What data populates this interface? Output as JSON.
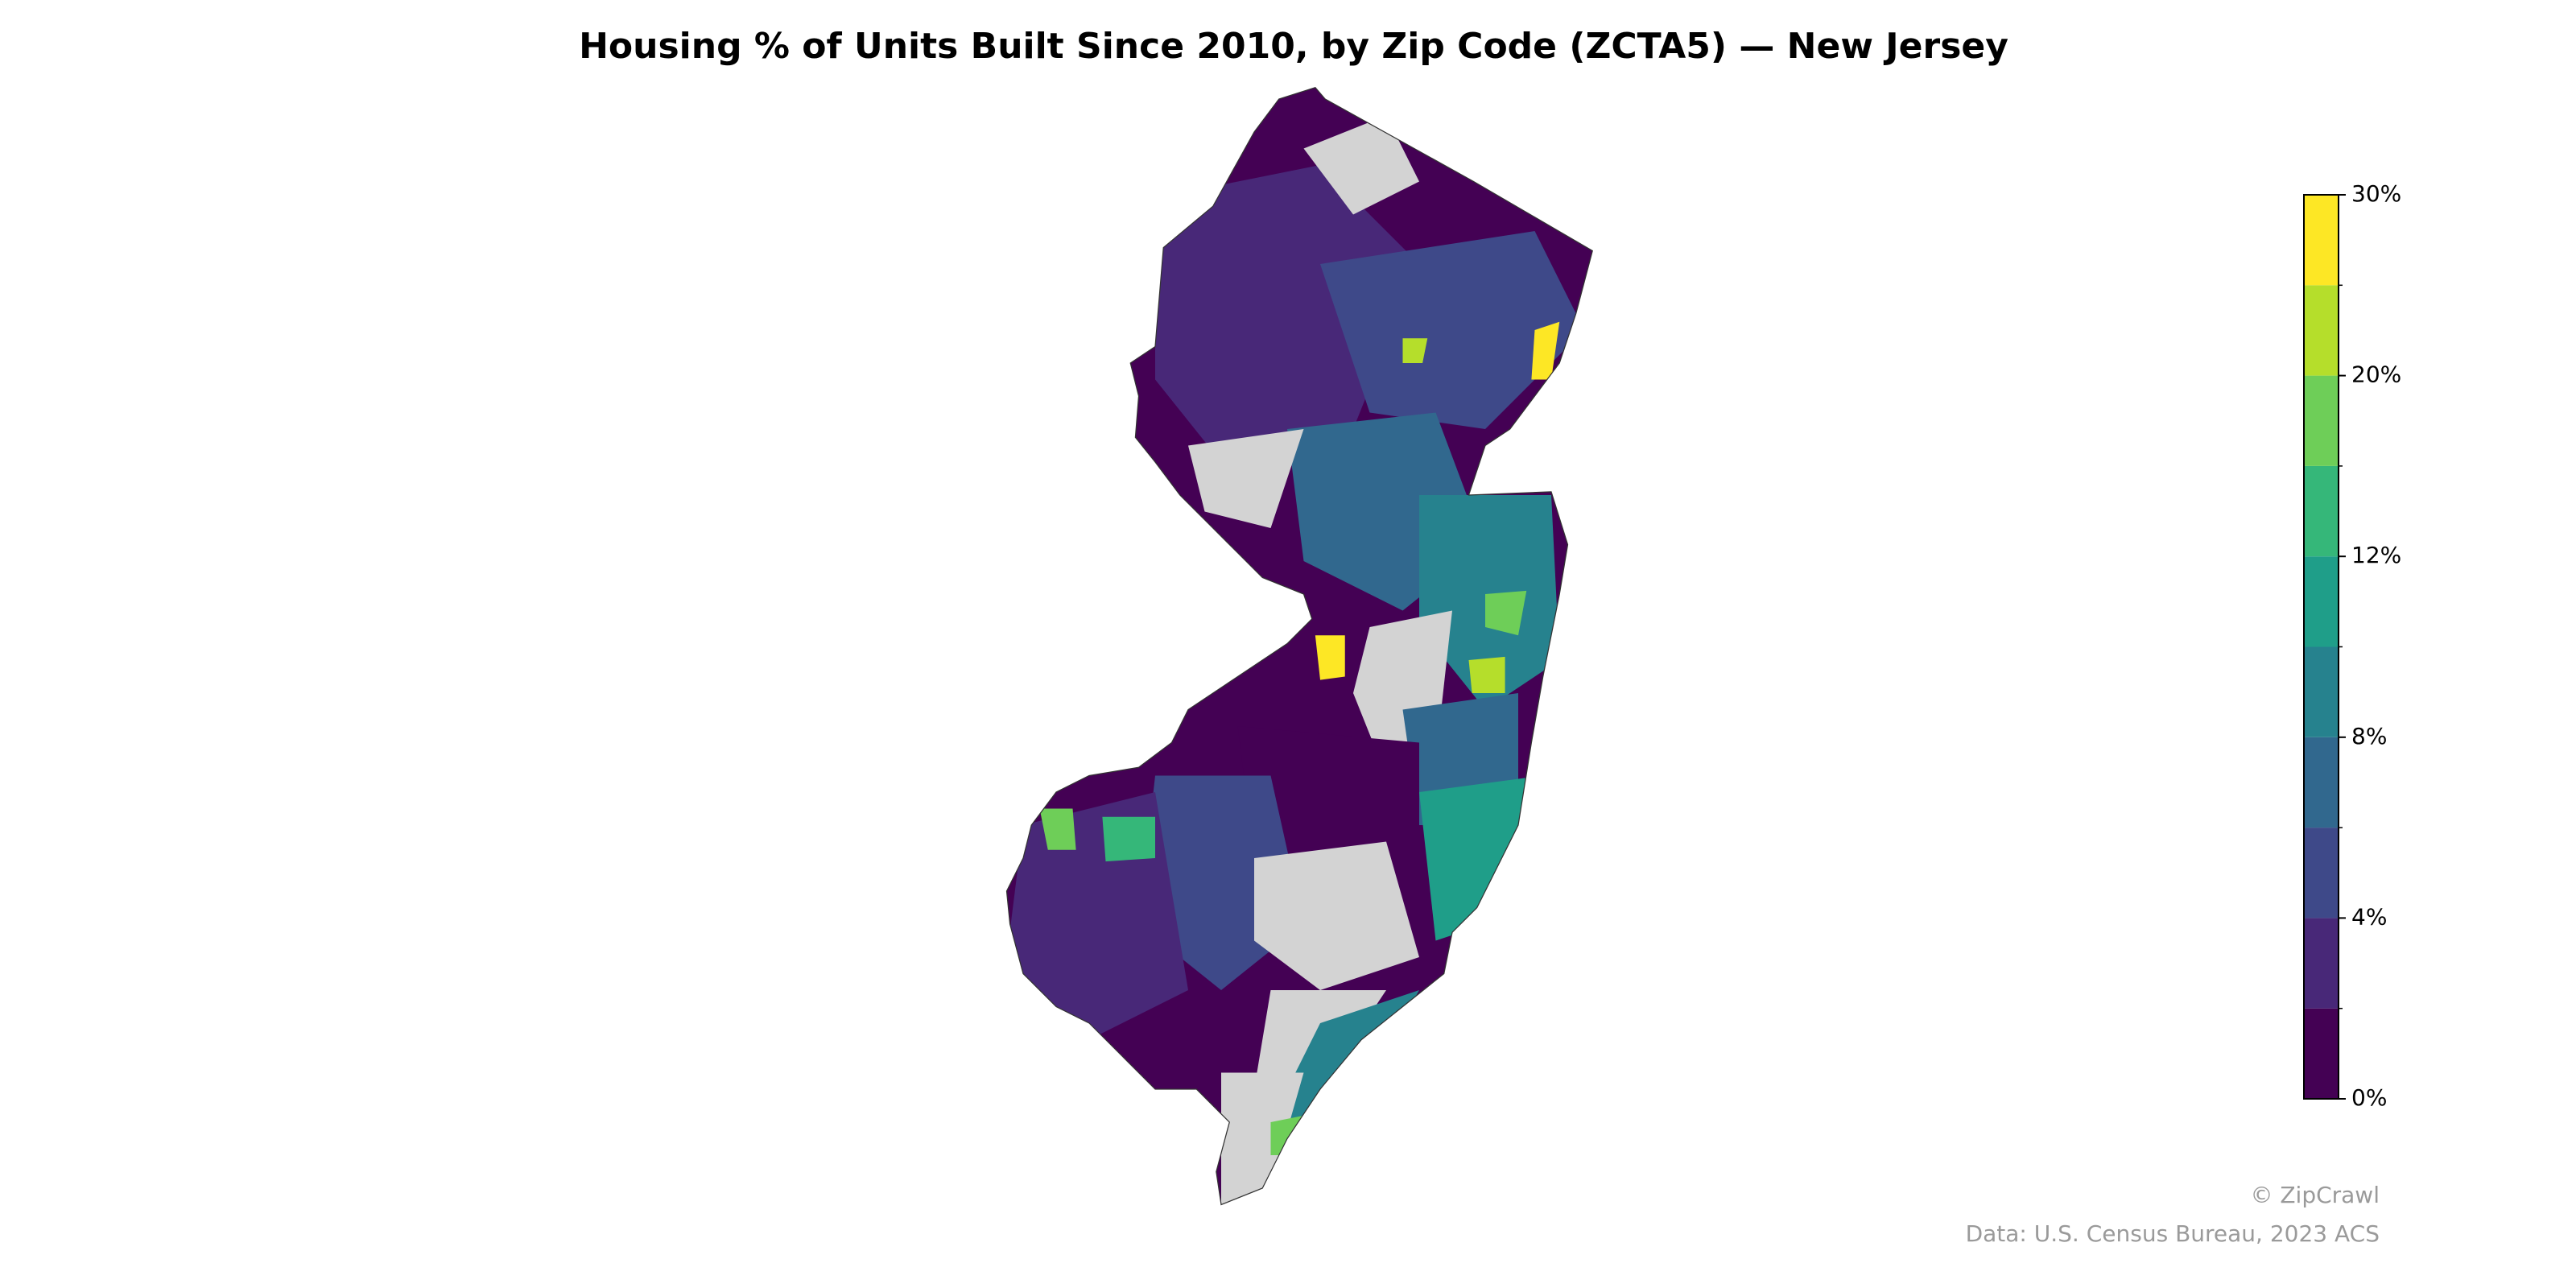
{
  "chart_data": {
    "type": "choropleth",
    "title": "Housing % of Units Built Since 2010, by Zip Code (ZCTA5) — New Jersey",
    "colorbar": {
      "boundaries": [
        0,
        2,
        4,
        6,
        8,
        10,
        12,
        15,
        20,
        25,
        30
      ],
      "colors": [
        "#440154",
        "#482878",
        "#3e4989",
        "#31688e",
        "#26828e",
        "#1f9e89",
        "#35b779",
        "#6ece58",
        "#b5de2b",
        "#fde725"
      ],
      "ticks": [
        {
          "value": 0,
          "label": "0%"
        },
        {
          "value": 4,
          "label": "4%"
        },
        {
          "value": 8,
          "label": "8%"
        },
        {
          "value": 12,
          "label": "12%"
        },
        {
          "value": 20,
          "label": "20%"
        },
        {
          "value": 30,
          "label": "30%"
        }
      ]
    },
    "credit": "© ZipCrawl",
    "source": "Data: U.S. Census Bureau, 2023 ACS"
  }
}
